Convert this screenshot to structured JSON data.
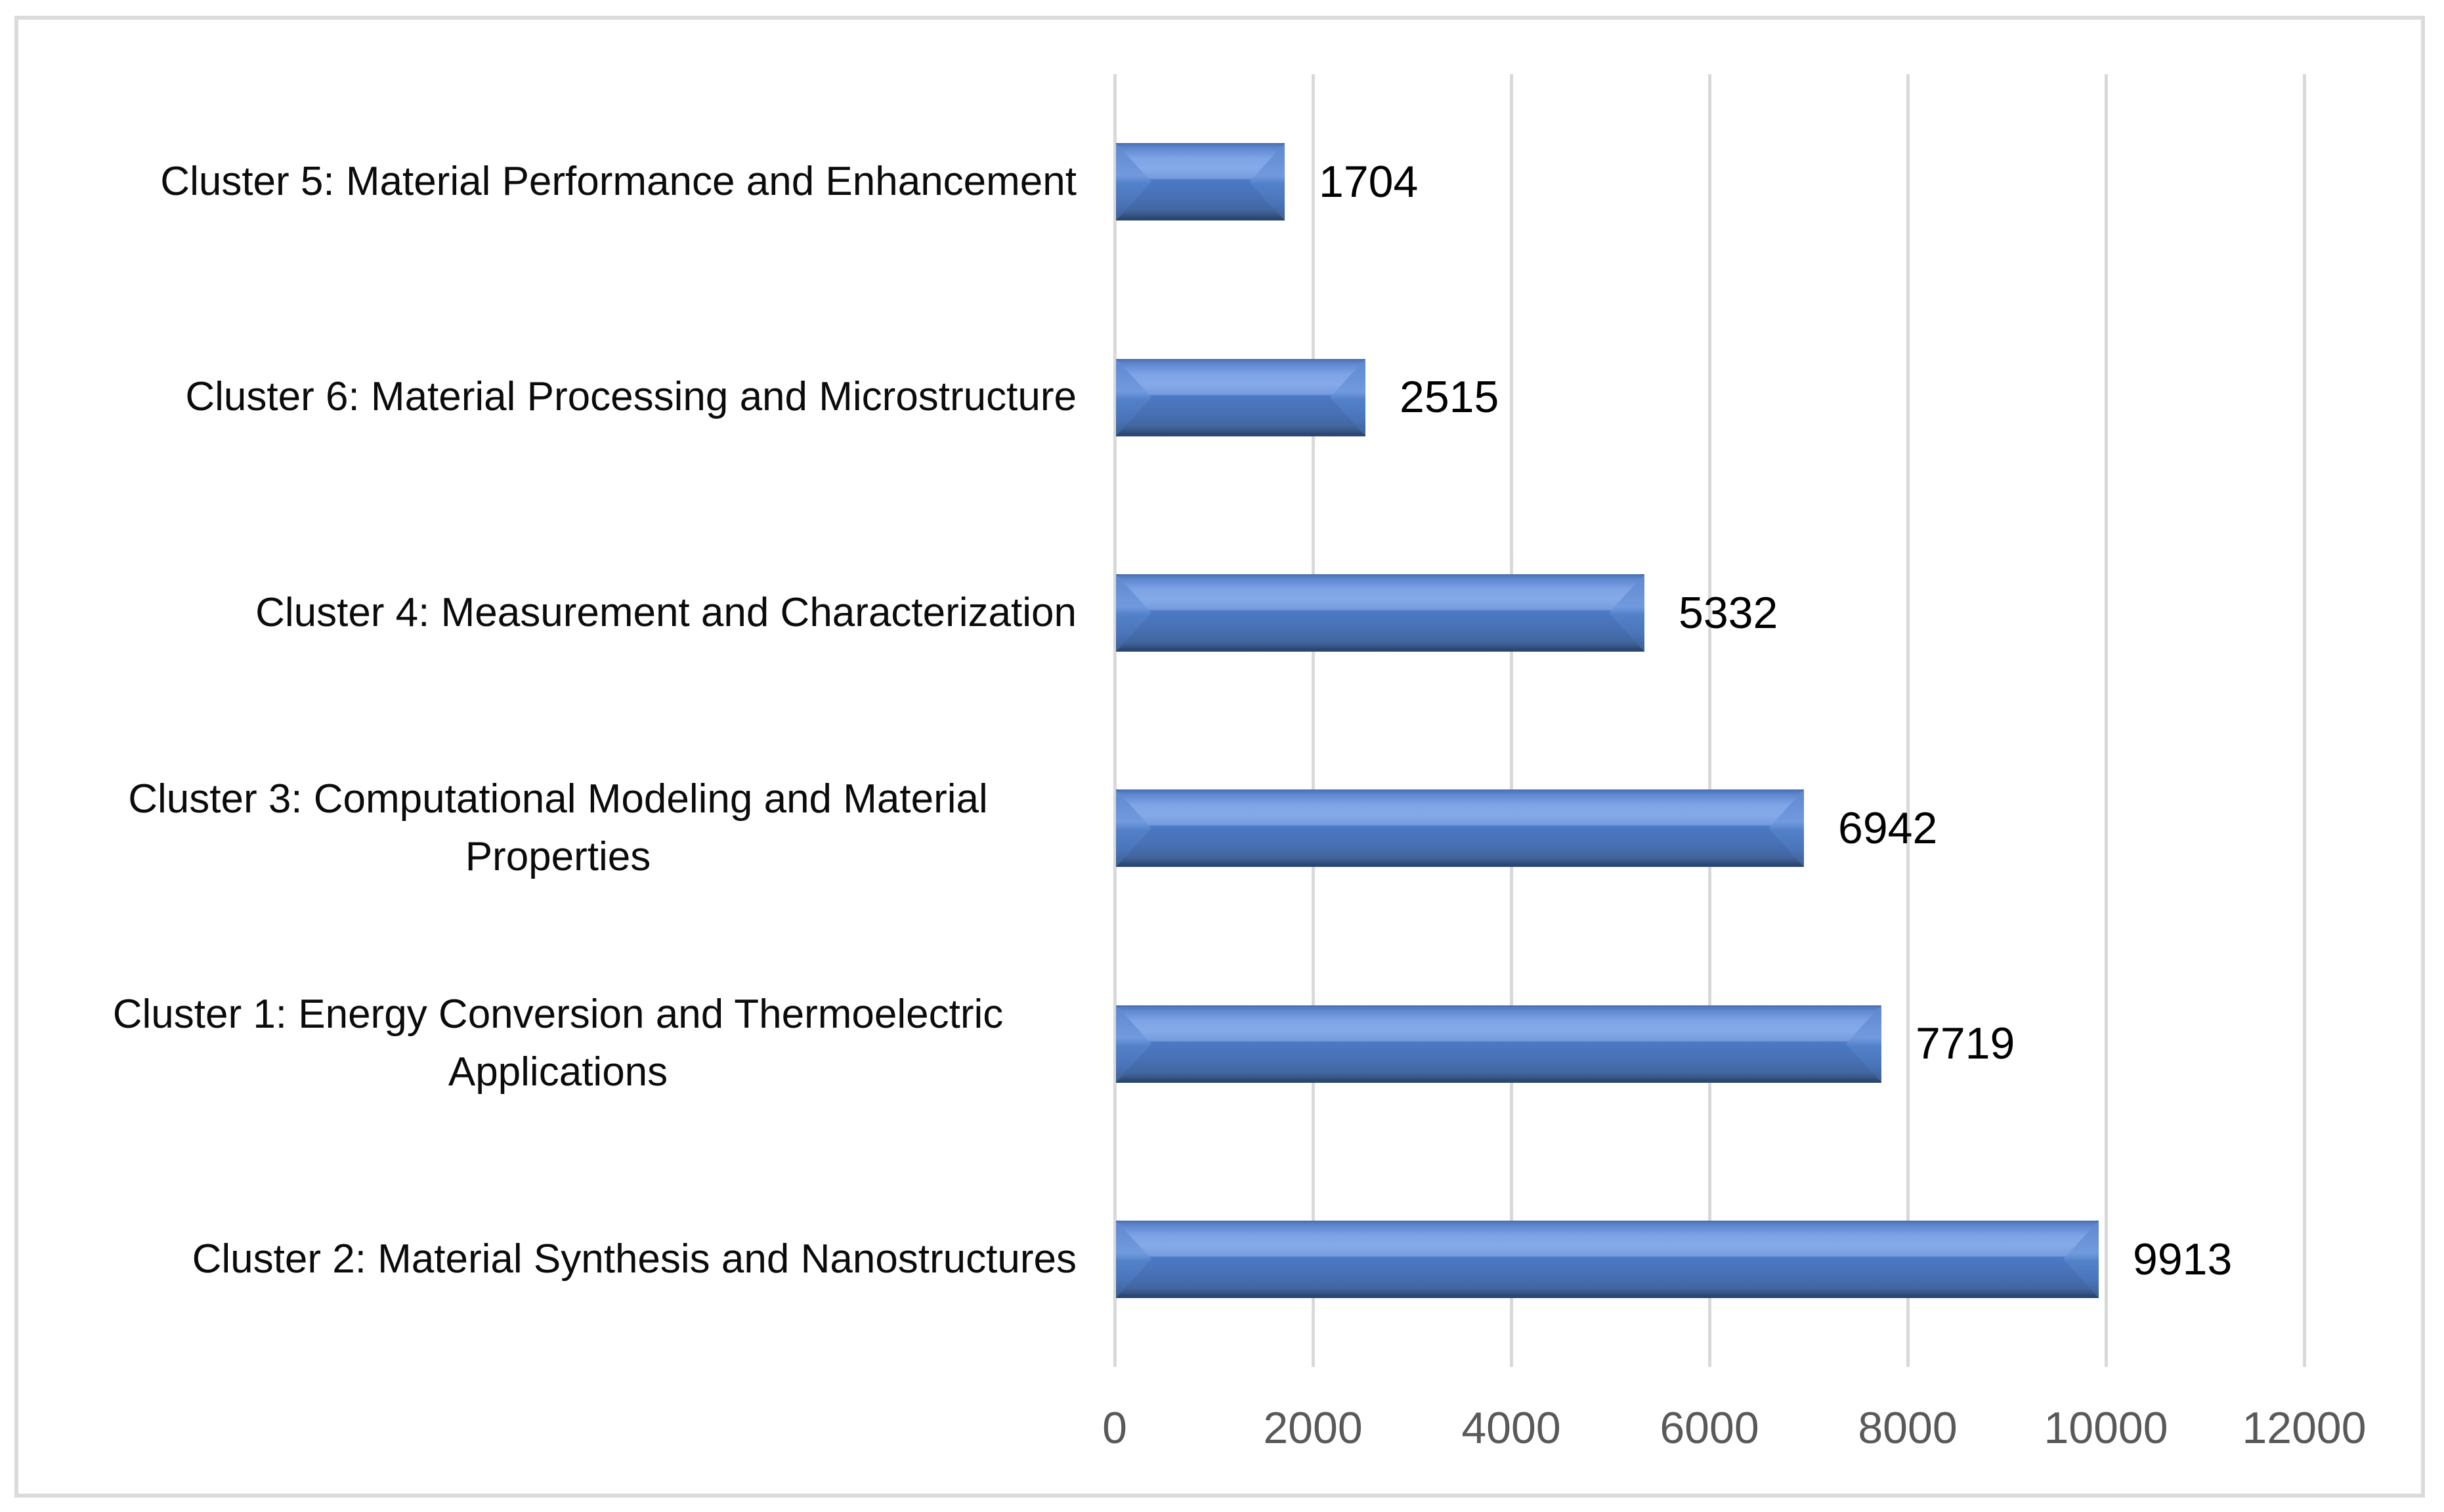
{
  "chart_data": {
    "type": "bar",
    "orientation": "horizontal",
    "categories": [
      "Cluster 5: Material Performance and Enhancement",
      "Cluster 6: Material Processing and Microstructure",
      "Cluster 4: Measurement and Characterization",
      "Cluster 3: Computational Modeling and Material Properties",
      "Cluster 1: Energy Conversion and Thermoelectric Applications",
      "Cluster 2: Material Synthesis and Nanostructures"
    ],
    "values": [
      1704,
      2515,
      5332,
      6942,
      7719,
      9913
    ],
    "data_labels": [
      "1704",
      "2515",
      "5332",
      "6942",
      "7719",
      "9913"
    ],
    "x_tick_labels": [
      "0",
      "2000",
      "4000",
      "6000",
      "8000",
      "10000",
      "12000"
    ],
    "x_tick_values": [
      0,
      2000,
      4000,
      6000,
      8000,
      10000,
      12000
    ],
    "xlim": [
      0,
      12000
    ],
    "ylabel": "",
    "xlabel": "",
    "legend": "none",
    "grid": "vertical gridlines on"
  },
  "colors": {
    "bar_face": "#4c79c5",
    "bar_highlight": "#85aae9",
    "bar_dark_edge": "#2d4773",
    "bar_bevel_cap": "#5e87cf",
    "gridline": "#d9d9d9",
    "frame_border": "#dbdbdb",
    "tick_text": "#595959",
    "category_text": "#0b0b0b",
    "value_text": "#000000",
    "background": "#ffffff"
  }
}
